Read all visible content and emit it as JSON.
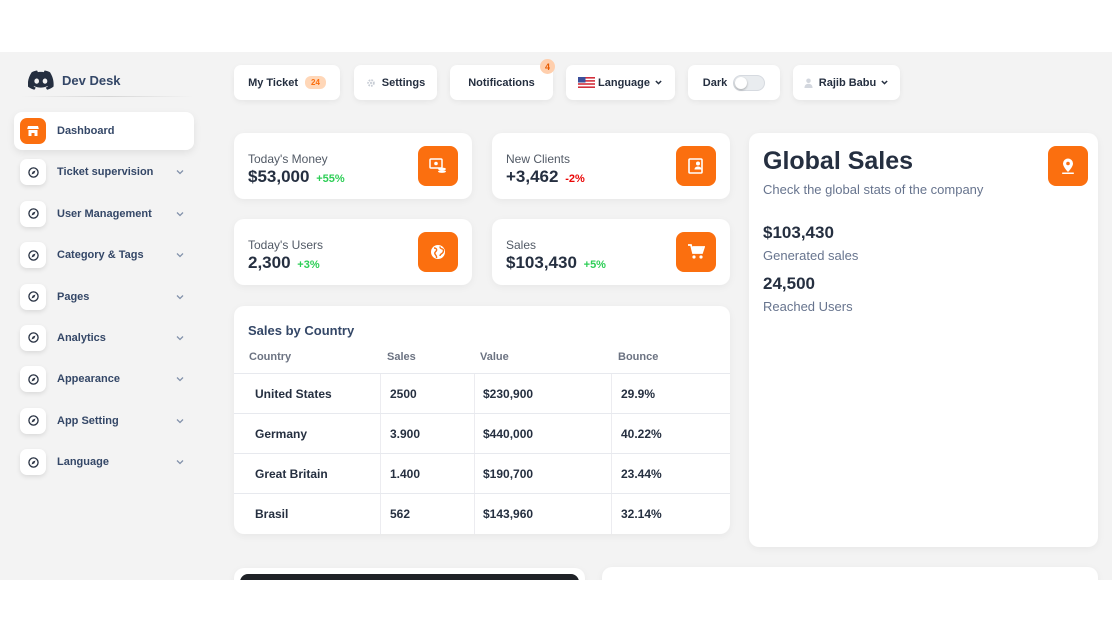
{
  "brand": {
    "name": "Dev Desk"
  },
  "colors": {
    "accent": "#fb6f0f",
    "positive": "#2dce56",
    "negative": "#ea0606",
    "text": "#252f40"
  },
  "sidebar": {
    "items": [
      {
        "label": "Dashboard",
        "icon": "shop-icon",
        "active": true
      },
      {
        "label": "Ticket supervision",
        "icon": "compass-icon"
      },
      {
        "label": "User Management",
        "icon": "compass-icon"
      },
      {
        "label": "Category & Tags",
        "icon": "compass-icon"
      },
      {
        "label": "Pages",
        "icon": "compass-icon"
      },
      {
        "label": "Analytics",
        "icon": "compass-icon"
      },
      {
        "label": "Appearance",
        "icon": "compass-icon"
      },
      {
        "label": "App Setting",
        "icon": "compass-icon"
      },
      {
        "label": "Language",
        "icon": "compass-icon"
      }
    ]
  },
  "topbar": {
    "my_ticket": {
      "label": "My Ticket",
      "count": "24"
    },
    "settings": {
      "label": "Settings",
      "icon": "gear-icon"
    },
    "notifications": {
      "label": "Notifications",
      "badge": "4"
    },
    "language": {
      "label": "Language",
      "icon": "us-flag-icon"
    },
    "dark": {
      "label": "Dark",
      "enabled": false
    },
    "user": {
      "label": "Rajib Babu",
      "icon": "user-icon"
    }
  },
  "stats": [
    {
      "label": "Today's Money",
      "value": "$53,000",
      "change": "+55%",
      "trend": "up",
      "icon": "money-icon"
    },
    {
      "label": "New Clients",
      "value": "+3,462",
      "change": "-2%",
      "trend": "down",
      "icon": "clients-icon"
    },
    {
      "label": "Today's Users",
      "value": "2,300",
      "change": "+3%",
      "trend": "up",
      "icon": "globe-icon"
    },
    {
      "label": "Sales",
      "value": "$103,430",
      "change": "+5%",
      "trend": "up",
      "icon": "cart-icon"
    }
  ],
  "sales_by_country": {
    "title": "Sales by Country",
    "columns": [
      "Country",
      "Sales",
      "Value",
      "Bounce"
    ],
    "rows": [
      [
        "United States",
        "2500",
        "$230,900",
        "29.9%"
      ],
      [
        "Germany",
        "3.900",
        "$440,000",
        "40.22%"
      ],
      [
        "Great Britain",
        "1.400",
        "$190,700",
        "23.44%"
      ],
      [
        "Brasil",
        "562",
        "$143,960",
        "32.14%"
      ]
    ]
  },
  "global_sales": {
    "title": "Global Sales",
    "subtitle": "Check the global stats of the company",
    "icon": "location-pin-icon",
    "generated_value": "$103,430",
    "generated_label": "Generated sales",
    "users_value": "24,500",
    "users_label": "Reached Users"
  }
}
